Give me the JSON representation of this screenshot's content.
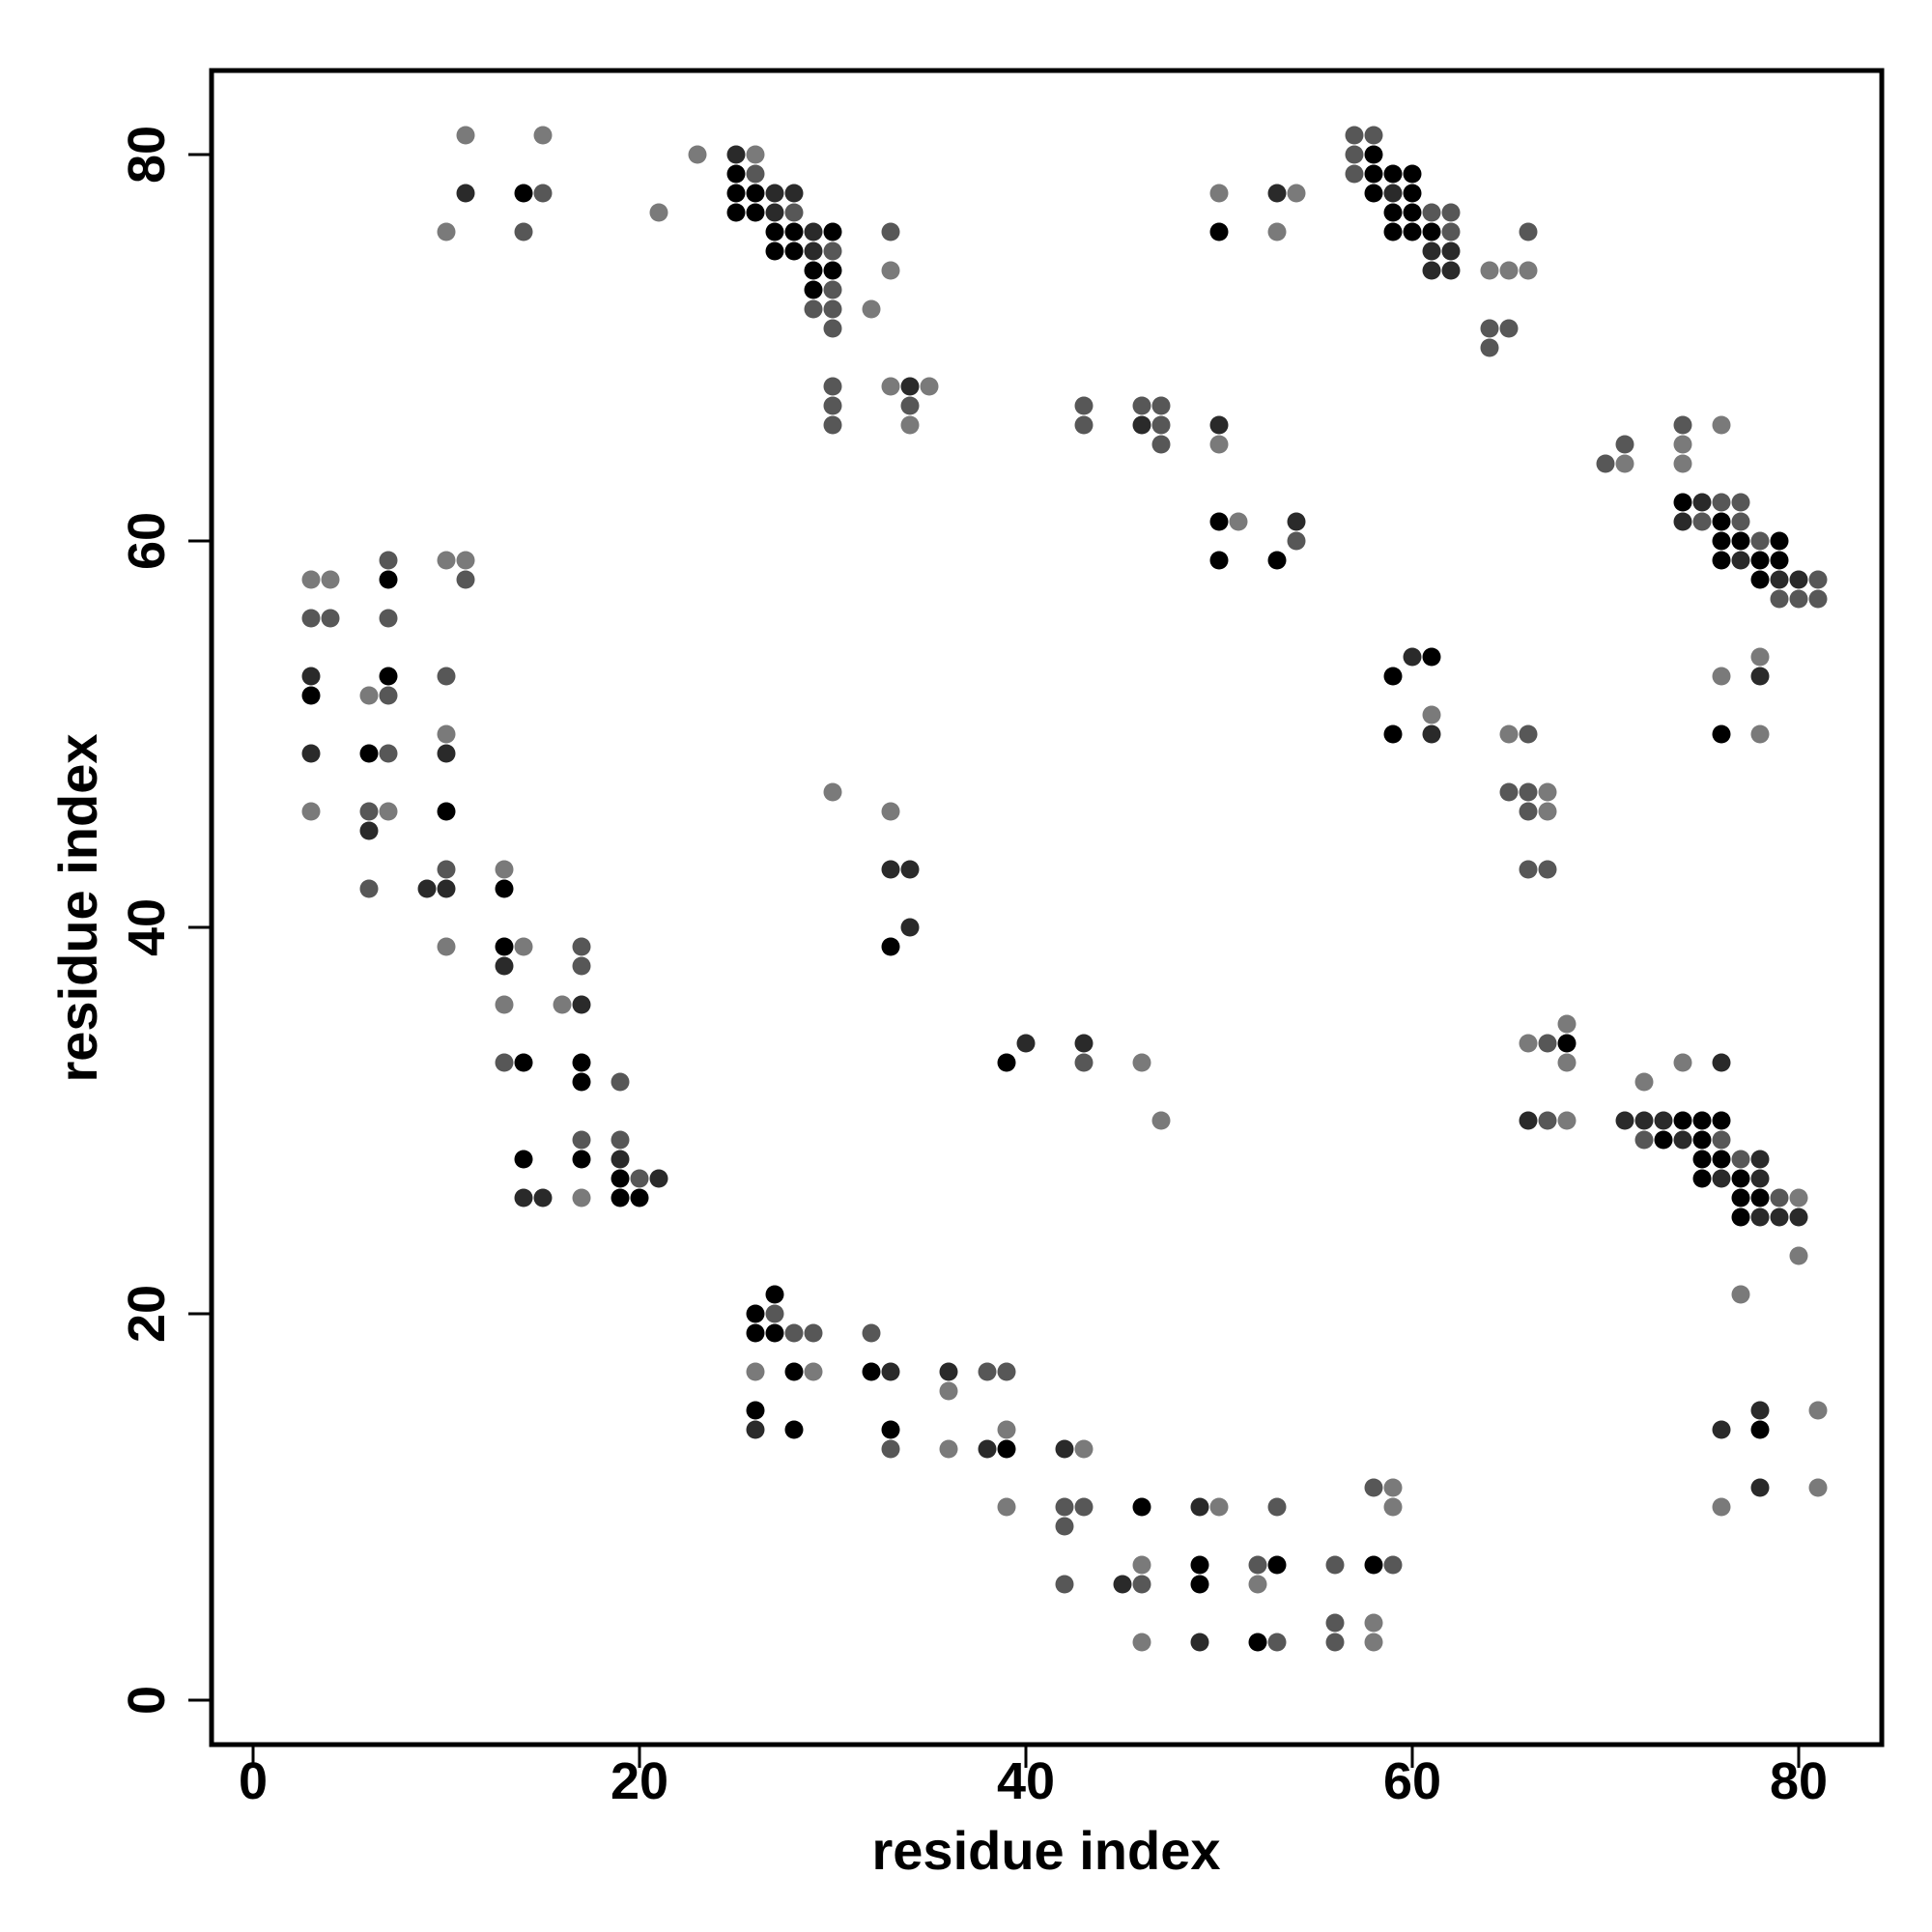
{
  "chart_data": {
    "type": "scatter",
    "xlabel": "residue index",
    "ylabel": "residue index",
    "xlim": [
      -2.2,
      84.2
    ],
    "ylim": [
      -2.2,
      84.2
    ],
    "xticks": [
      0,
      20,
      40,
      60,
      80
    ],
    "yticks": [
      0,
      20,
      40,
      60,
      80
    ],
    "grid": false,
    "marker_colors": {
      "1": "#000000",
      "2": "#2a2a2a",
      "3": "#575757",
      "4": "#7a7a7a"
    },
    "points": [
      [
        11,
        81,
        4
      ],
      [
        15,
        81,
        4
      ],
      [
        11,
        78,
        2
      ],
      [
        14,
        78,
        1
      ],
      [
        15,
        78,
        3
      ],
      [
        10,
        76,
        4
      ],
      [
        14,
        76,
        3
      ],
      [
        23,
        80,
        4
      ],
      [
        21,
        77,
        4
      ],
      [
        25,
        80,
        2
      ],
      [
        26,
        80,
        4
      ],
      [
        25,
        79,
        1
      ],
      [
        26,
        79,
        3
      ],
      [
        25,
        78,
        1
      ],
      [
        26,
        78,
        1
      ],
      [
        27,
        78,
        2
      ],
      [
        28,
        78,
        2
      ],
      [
        25,
        77,
        1
      ],
      [
        26,
        77,
        1
      ],
      [
        27,
        77,
        2
      ],
      [
        28,
        77,
        3
      ],
      [
        27,
        76,
        1
      ],
      [
        28,
        76,
        1
      ],
      [
        29,
        76,
        2
      ],
      [
        30,
        76,
        1
      ],
      [
        27,
        75,
        1
      ],
      [
        28,
        75,
        1
      ],
      [
        29,
        75,
        2
      ],
      [
        30,
        75,
        3
      ],
      [
        29,
        74,
        1
      ],
      [
        30,
        74,
        1
      ],
      [
        29,
        73,
        1
      ],
      [
        30,
        73,
        3
      ],
      [
        29,
        72,
        3
      ],
      [
        30,
        72,
        3
      ],
      [
        30,
        71,
        3
      ],
      [
        32,
        72,
        4
      ],
      [
        33,
        76,
        3
      ],
      [
        33,
        74,
        4
      ],
      [
        30,
        68,
        3
      ],
      [
        30,
        67,
        3
      ],
      [
        30,
        66,
        3
      ],
      [
        33,
        68,
        4
      ],
      [
        34,
        68,
        2
      ],
      [
        35,
        68,
        4
      ],
      [
        34,
        67,
        3
      ],
      [
        34,
        66,
        4
      ],
      [
        43,
        67,
        3
      ],
      [
        43,
        66,
        3
      ],
      [
        46,
        67,
        3
      ],
      [
        47,
        67,
        3
      ],
      [
        46,
        66,
        2
      ],
      [
        47,
        66,
        3
      ],
      [
        47,
        65,
        3
      ],
      [
        50,
        78,
        4
      ],
      [
        50,
        76,
        1
      ],
      [
        53,
        78,
        2
      ],
      [
        54,
        78,
        4
      ],
      [
        53,
        76,
        4
      ],
      [
        50,
        66,
        2
      ],
      [
        50,
        65,
        4
      ],
      [
        50,
        61,
        1
      ],
      [
        51,
        61,
        4
      ],
      [
        54,
        61,
        2
      ],
      [
        54,
        60,
        3
      ],
      [
        50,
        59,
        1
      ],
      [
        53,
        59,
        1
      ],
      [
        57,
        81,
        3
      ],
      [
        58,
        81,
        3
      ],
      [
        57,
        80,
        3
      ],
      [
        58,
        80,
        1
      ],
      [
        57,
        79,
        3
      ],
      [
        58,
        79,
        1
      ],
      [
        59,
        79,
        1
      ],
      [
        60,
        79,
        1
      ],
      [
        58,
        78,
        1
      ],
      [
        59,
        78,
        2
      ],
      [
        60,
        78,
        1
      ],
      [
        59,
        77,
        1
      ],
      [
        60,
        77,
        1
      ],
      [
        61,
        77,
        3
      ],
      [
        62,
        77,
        3
      ],
      [
        59,
        76,
        1
      ],
      [
        60,
        76,
        1
      ],
      [
        61,
        76,
        1
      ],
      [
        62,
        76,
        3
      ],
      [
        61,
        75,
        2
      ],
      [
        62,
        75,
        2
      ],
      [
        61,
        74,
        2
      ],
      [
        62,
        74,
        2
      ],
      [
        64,
        74,
        4
      ],
      [
        65,
        74,
        4
      ],
      [
        66,
        74,
        4
      ],
      [
        66,
        76,
        3
      ],
      [
        64,
        71,
        3
      ],
      [
        65,
        71,
        3
      ],
      [
        64,
        70,
        3
      ],
      [
        70,
        64,
        3
      ],
      [
        71,
        65,
        3
      ],
      [
        71,
        64,
        4
      ],
      [
        74,
        66,
        3
      ],
      [
        76,
        66,
        4
      ],
      [
        74,
        65,
        4
      ],
      [
        74,
        64,
        4
      ],
      [
        74,
        62,
        1
      ],
      [
        75,
        62,
        2
      ],
      [
        76,
        62,
        3
      ],
      [
        77,
        62,
        3
      ],
      [
        74,
        61,
        2
      ],
      [
        75,
        61,
        3
      ],
      [
        76,
        61,
        1
      ],
      [
        77,
        61,
        3
      ],
      [
        76,
        60,
        1
      ],
      [
        77,
        60,
        1
      ],
      [
        78,
        60,
        3
      ],
      [
        79,
        60,
        1
      ],
      [
        76,
        59,
        1
      ],
      [
        77,
        59,
        2
      ],
      [
        78,
        59,
        1
      ],
      [
        79,
        59,
        1
      ],
      [
        78,
        58,
        1
      ],
      [
        79,
        58,
        2
      ],
      [
        80,
        58,
        2
      ],
      [
        81,
        58,
        3
      ],
      [
        79,
        57,
        3
      ],
      [
        80,
        57,
        3
      ],
      [
        81,
        57,
        3
      ],
      [
        59,
        53,
        1
      ],
      [
        60,
        54,
        2
      ],
      [
        61,
        54,
        1
      ],
      [
        61,
        51,
        4
      ],
      [
        59,
        50,
        1
      ],
      [
        61,
        50,
        2
      ],
      [
        65,
        50,
        4
      ],
      [
        66,
        50,
        3
      ],
      [
        65,
        47,
        3
      ],
      [
        66,
        47,
        3
      ],
      [
        67,
        47,
        4
      ],
      [
        66,
        46,
        3
      ],
      [
        67,
        46,
        4
      ],
      [
        66,
        43,
        3
      ],
      [
        67,
        43,
        3
      ],
      [
        76,
        53,
        4
      ],
      [
        78,
        54,
        4
      ],
      [
        78,
        53,
        2
      ],
      [
        76,
        50,
        1
      ],
      [
        78,
        50,
        4
      ],
      [
        3,
        58,
        4
      ],
      [
        4,
        58,
        4
      ],
      [
        3,
        56,
        3
      ],
      [
        4,
        56,
        3
      ],
      [
        3,
        53,
        2
      ],
      [
        3,
        52,
        1
      ],
      [
        3,
        49,
        2
      ],
      [
        3,
        46,
        4
      ],
      [
        7,
        59,
        3
      ],
      [
        7,
        58,
        1
      ],
      [
        7,
        56,
        3
      ],
      [
        6,
        52,
        4
      ],
      [
        7,
        52,
        3
      ],
      [
        7,
        53,
        1
      ],
      [
        6,
        49,
        1
      ],
      [
        7,
        49,
        3
      ],
      [
        6,
        46,
        3
      ],
      [
        7,
        46,
        4
      ],
      [
        6,
        45,
        2
      ],
      [
        6,
        42,
        3
      ],
      [
        10,
        59,
        4
      ],
      [
        11,
        59,
        4
      ],
      [
        11,
        58,
        3
      ],
      [
        10,
        53,
        3
      ],
      [
        10,
        50,
        4
      ],
      [
        10,
        49,
        2
      ],
      [
        10,
        46,
        1
      ],
      [
        10,
        43,
        3
      ],
      [
        9,
        42,
        2
      ],
      [
        10,
        42,
        2
      ],
      [
        10,
        39,
        4
      ],
      [
        13,
        43,
        4
      ],
      [
        13,
        42,
        1
      ],
      [
        13,
        39,
        1
      ],
      [
        14,
        39,
        4
      ],
      [
        13,
        38,
        2
      ],
      [
        13,
        36,
        4
      ],
      [
        13,
        33,
        3
      ],
      [
        14,
        33,
        1
      ],
      [
        16,
        36,
        4
      ],
      [
        17,
        39,
        3
      ],
      [
        17,
        38,
        3
      ],
      [
        17,
        36,
        2
      ],
      [
        17,
        33,
        1
      ],
      [
        17,
        32,
        1
      ],
      [
        19,
        32,
        3
      ],
      [
        17,
        29,
        3
      ],
      [
        19,
        29,
        3
      ],
      [
        17,
        28,
        1
      ],
      [
        19,
        28,
        2
      ],
      [
        19,
        27,
        1
      ],
      [
        20,
        27,
        3
      ],
      [
        21,
        27,
        2
      ],
      [
        19,
        26,
        1
      ],
      [
        20,
        26,
        1
      ],
      [
        14,
        28,
        1
      ],
      [
        14,
        26,
        2
      ],
      [
        15,
        26,
        2
      ],
      [
        17,
        26,
        4
      ],
      [
        30,
        47,
        4
      ],
      [
        33,
        46,
        4
      ],
      [
        33,
        43,
        2
      ],
      [
        34,
        43,
        2
      ],
      [
        33,
        39,
        1
      ],
      [
        34,
        40,
        2
      ],
      [
        39,
        33,
        1
      ],
      [
        40,
        34,
        2
      ],
      [
        43,
        34,
        2
      ],
      [
        43,
        33,
        3
      ],
      [
        46,
        33,
        4
      ],
      [
        47,
        30,
        4
      ],
      [
        66,
        34,
        4
      ],
      [
        67,
        34,
        3
      ],
      [
        68,
        35,
        4
      ],
      [
        68,
        34,
        1
      ],
      [
        68,
        33,
        4
      ],
      [
        66,
        30,
        2
      ],
      [
        67,
        30,
        3
      ],
      [
        68,
        30,
        4
      ],
      [
        71,
        30,
        2
      ],
      [
        72,
        30,
        2
      ],
      [
        73,
        30,
        2
      ],
      [
        74,
        30,
        1
      ],
      [
        75,
        30,
        1
      ],
      [
        76,
        30,
        1
      ],
      [
        72,
        32,
        4
      ],
      [
        74,
        33,
        4
      ],
      [
        76,
        33,
        2
      ],
      [
        72,
        29,
        3
      ],
      [
        73,
        29,
        1
      ],
      [
        74,
        29,
        2
      ],
      [
        75,
        29,
        1
      ],
      [
        76,
        29,
        3
      ],
      [
        75,
        28,
        1
      ],
      [
        76,
        28,
        1
      ],
      [
        77,
        28,
        3
      ],
      [
        78,
        28,
        2
      ],
      [
        75,
        27,
        1
      ],
      [
        76,
        27,
        2
      ],
      [
        77,
        27,
        1
      ],
      [
        78,
        27,
        2
      ],
      [
        77,
        26,
        1
      ],
      [
        78,
        26,
        1
      ],
      [
        79,
        26,
        3
      ],
      [
        80,
        26,
        4
      ],
      [
        77,
        25,
        1
      ],
      [
        78,
        25,
        2
      ],
      [
        79,
        25,
        2
      ],
      [
        80,
        25,
        2
      ],
      [
        80,
        23,
        4
      ],
      [
        77,
        21,
        4
      ],
      [
        78,
        15,
        2
      ],
      [
        76,
        14,
        2
      ],
      [
        78,
        14,
        1
      ],
      [
        78,
        11,
        2
      ],
      [
        76,
        10,
        4
      ],
      [
        81,
        15,
        4
      ],
      [
        81,
        11,
        4
      ],
      [
        26,
        20,
        1
      ],
      [
        27,
        20,
        3
      ],
      [
        27,
        21,
        1
      ],
      [
        26,
        19,
        1
      ],
      [
        27,
        19,
        1
      ],
      [
        28,
        19,
        3
      ],
      [
        29,
        19,
        3
      ],
      [
        26,
        17,
        4
      ],
      [
        28,
        17,
        1
      ],
      [
        29,
        17,
        4
      ],
      [
        26,
        15,
        1
      ],
      [
        26,
        14,
        2
      ],
      [
        28,
        14,
        1
      ],
      [
        32,
        19,
        3
      ],
      [
        32,
        17,
        1
      ],
      [
        33,
        17,
        2
      ],
      [
        33,
        14,
        1
      ],
      [
        33,
        13,
        3
      ],
      [
        36,
        17,
        2
      ],
      [
        36,
        16,
        4
      ],
      [
        36,
        13,
        4
      ],
      [
        38,
        17,
        3
      ],
      [
        39,
        17,
        3
      ],
      [
        39,
        14,
        4
      ],
      [
        38,
        13,
        2
      ],
      [
        39,
        13,
        1
      ],
      [
        39,
        10,
        4
      ],
      [
        42,
        13,
        2
      ],
      [
        43,
        13,
        4
      ],
      [
        42,
        10,
        3
      ],
      [
        43,
        10,
        3
      ],
      [
        42,
        9,
        3
      ],
      [
        42,
        6,
        3
      ],
      [
        46,
        10,
        1
      ],
      [
        46,
        7,
        4
      ],
      [
        45,
        6,
        2
      ],
      [
        46,
        6,
        3
      ],
      [
        46,
        3,
        4
      ],
      [
        49,
        10,
        2
      ],
      [
        50,
        10,
        4
      ],
      [
        49,
        7,
        1
      ],
      [
        49,
        6,
        1
      ],
      [
        49,
        3,
        2
      ],
      [
        53,
        10,
        3
      ],
      [
        52,
        7,
        3
      ],
      [
        53,
        7,
        1
      ],
      [
        52,
        6,
        4
      ],
      [
        52,
        3,
        1
      ],
      [
        53,
        3,
        3
      ],
      [
        56,
        7,
        3
      ],
      [
        56,
        4,
        3
      ],
      [
        56,
        3,
        3
      ],
      [
        58,
        11,
        3
      ],
      [
        59,
        11,
        4
      ],
      [
        59,
        10,
        4
      ],
      [
        58,
        7,
        1
      ],
      [
        59,
        7,
        3
      ],
      [
        58,
        4,
        4
      ],
      [
        58,
        3,
        4
      ]
    ]
  }
}
